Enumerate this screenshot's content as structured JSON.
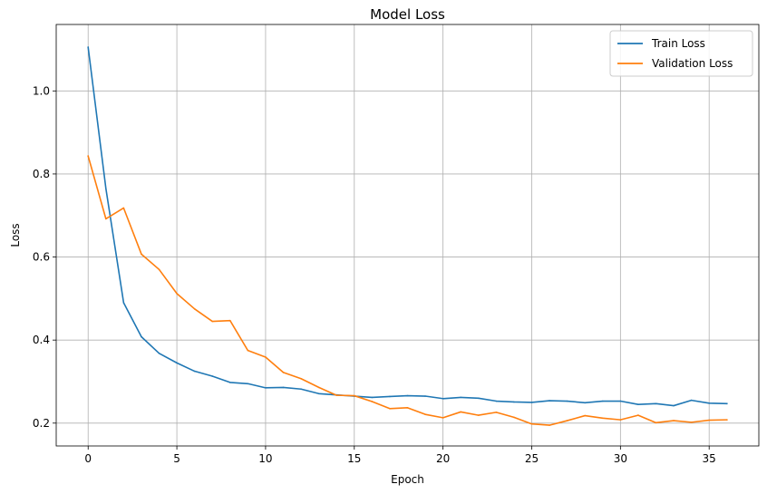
{
  "chart_data": {
    "type": "line",
    "title": "Model Loss",
    "xlabel": "Epoch",
    "ylabel": "Loss",
    "xlim": [
      -1.8,
      37.8
    ],
    "ylim": [
      0.145,
      1.16
    ],
    "xticks": [
      0,
      5,
      10,
      15,
      20,
      25,
      30,
      35
    ],
    "yticks": [
      0.2,
      0.4,
      0.6,
      0.8,
      1.0
    ],
    "ytick_labels": [
      "0.2",
      "0.4",
      "0.6",
      "0.8",
      "1.0"
    ],
    "grid": true,
    "legend_position": "top-right",
    "x": [
      0,
      1,
      2,
      3,
      4,
      5,
      6,
      7,
      8,
      9,
      10,
      11,
      12,
      13,
      14,
      15,
      16,
      17,
      18,
      19,
      20,
      21,
      22,
      23,
      24,
      25,
      26,
      27,
      28,
      29,
      30,
      31,
      32,
      33,
      34,
      35,
      36
    ],
    "series": [
      {
        "name": "Train Loss",
        "color": "#1f77b4",
        "values": [
          1.105,
          0.765,
          0.49,
          0.408,
          0.368,
          0.345,
          0.325,
          0.313,
          0.298,
          0.295,
          0.285,
          0.286,
          0.282,
          0.271,
          0.268,
          0.265,
          0.262,
          0.264,
          0.266,
          0.265,
          0.259,
          0.262,
          0.26,
          0.253,
          0.251,
          0.25,
          0.254,
          0.253,
          0.249,
          0.253,
          0.253,
          0.245,
          0.247,
          0.242,
          0.255,
          0.248,
          0.247
        ]
      },
      {
        "name": "Validation Loss",
        "color": "#ff7f0e",
        "values": [
          0.843,
          0.692,
          0.718,
          0.607,
          0.57,
          0.512,
          0.475,
          0.445,
          0.447,
          0.375,
          0.359,
          0.322,
          0.307,
          0.286,
          0.267,
          0.266,
          0.252,
          0.235,
          0.237,
          0.221,
          0.213,
          0.227,
          0.219,
          0.226,
          0.214,
          0.198,
          0.195,
          0.206,
          0.218,
          0.212,
          0.208,
          0.219,
          0.201,
          0.206,
          0.202,
          0.207,
          0.208
        ]
      }
    ]
  }
}
